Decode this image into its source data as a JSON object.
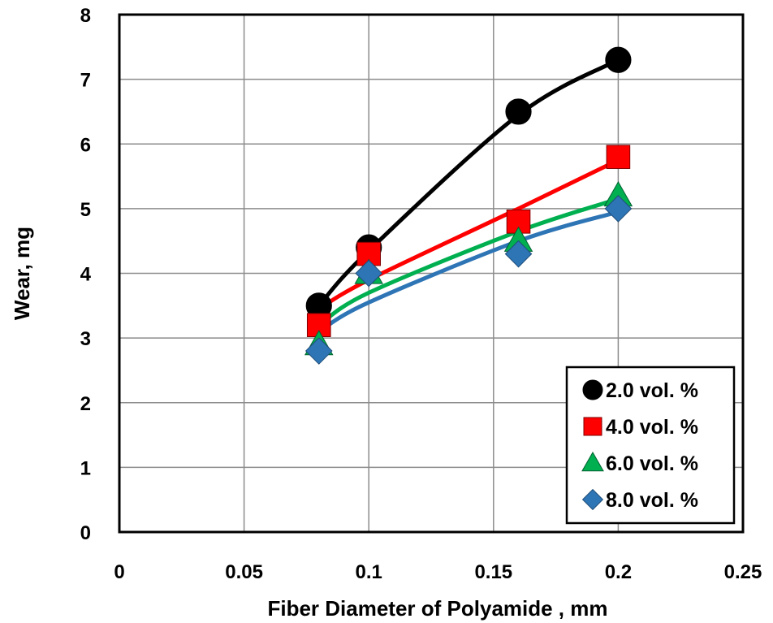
{
  "chart_data": {
    "type": "scatter",
    "xlabel": "Fiber Diameter of Polyamide , mm",
    "ylabel": "Wear, mg",
    "xlim": [
      0,
      0.25
    ],
    "ylim": [
      0,
      8
    ],
    "xticks": [
      0,
      0.05,
      0.1,
      0.15,
      0.2,
      0.25
    ],
    "xtick_labels": [
      "0",
      "0.05",
      "0.1",
      "0.15",
      "0.2",
      "0.25"
    ],
    "yticks": [
      0,
      1,
      2,
      3,
      4,
      5,
      6,
      7,
      8
    ],
    "ytick_labels": [
      "0",
      "1",
      "2",
      "3",
      "4",
      "5",
      "6",
      "7",
      "8"
    ],
    "grid": true,
    "legend_position": "bottom-right",
    "trendline": "smooth fit curve per series",
    "series": [
      {
        "name": "2.0 vol. %",
        "marker": "circle",
        "color": "#000000",
        "x": [
          0.08,
          0.1,
          0.16,
          0.2
        ],
        "y": [
          3.5,
          4.4,
          6.5,
          7.3
        ],
        "fit_y": [
          3.5,
          4.35,
          6.45,
          7.3
        ]
      },
      {
        "name": "4.0 vol. %",
        "marker": "square",
        "color": "#ff0000",
        "x": [
          0.08,
          0.1,
          0.16,
          0.2
        ],
        "y": [
          3.2,
          4.3,
          4.8,
          5.8
        ],
        "fit_y": [
          3.45,
          3.9,
          5.0,
          5.75
        ]
      },
      {
        "name": "6.0 vol. %",
        "marker": "triangle",
        "color": "#00b050",
        "x": [
          0.08,
          0.1,
          0.16,
          0.2
        ],
        "y": [
          2.9,
          4.0,
          4.5,
          5.2
        ],
        "fit_y": [
          3.2,
          3.7,
          4.65,
          5.15
        ]
      },
      {
        "name": "8.0 vol. %",
        "marker": "diamond",
        "color": "#2e75b6",
        "x": [
          0.08,
          0.1,
          0.16,
          0.2
        ],
        "y": [
          2.8,
          4.0,
          4.3,
          5.0
        ],
        "fit_y": [
          3.1,
          3.55,
          4.5,
          4.95
        ]
      }
    ]
  }
}
